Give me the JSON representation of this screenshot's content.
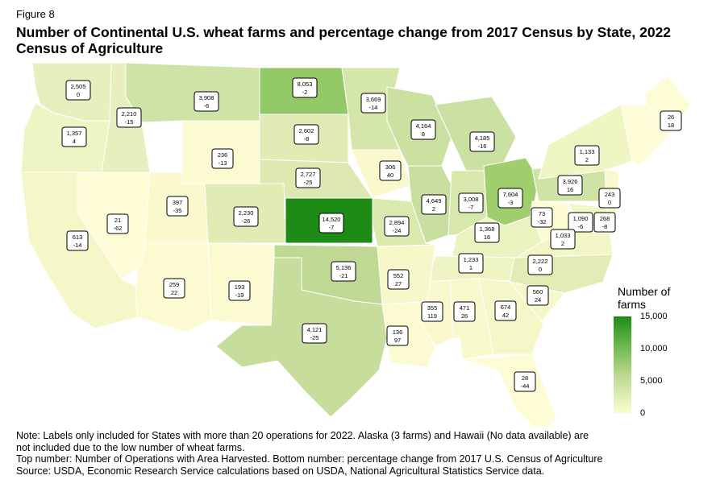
{
  "figure_label": "Figure 8",
  "title": "Number of Continental U.S. wheat farms and percentage change from 2017 Census by State, 2022 Census of Agriculture",
  "legend": {
    "title": "Number of farms",
    "ticks": [
      "15,000",
      "10,000",
      "5,000",
      "0"
    ],
    "colors": {
      "low": "#fcfbd2",
      "mid": "#b9d88e",
      "high": "#1e8b16"
    }
  },
  "notes": [
    "Note: Labels only included for States with more than 20 operations for 2022. Alaska (3 farms) and Hawaii (No data available) are",
    "not included due to the low number of wheat farms.",
    "Top number: Number of Operations with Area Harvested. Bottom number: percentage change from 2017 U.S. Census of Agriculture",
    "Source: USDA, Economic Research Service calculations based on USDA, National Agricultural Statistics Service data."
  ],
  "states": [
    {
      "id": "WA",
      "farms": "2,505",
      "change": "0"
    },
    {
      "id": "OR",
      "farms": "1,357",
      "change": "4"
    },
    {
      "id": "ID",
      "farms": "2,210",
      "change": "-15"
    },
    {
      "id": "MT",
      "farms": "3,908",
      "change": "-6"
    },
    {
      "id": "ND",
      "farms": "8,053",
      "change": "-2"
    },
    {
      "id": "MN",
      "farms": "3,669",
      "change": "-14"
    },
    {
      "id": "WI",
      "farms": "4,164",
      "change": "8"
    },
    {
      "id": "MI",
      "farms": "4,185",
      "change": "-16"
    },
    {
      "id": "SD",
      "farms": "2,602",
      "change": "-8"
    },
    {
      "id": "WY",
      "farms": "236",
      "change": "-13"
    },
    {
      "id": "NE",
      "farms": "2,727",
      "change": "-25"
    },
    {
      "id": "IA",
      "farms": "306",
      "change": "40"
    },
    {
      "id": "IL",
      "farms": "4,649",
      "change": "2"
    },
    {
      "id": "IN",
      "farms": "3,008",
      "change": "-7"
    },
    {
      "id": "OH",
      "farms": "7,604",
      "change": "-3"
    },
    {
      "id": "PA",
      "farms": "3,926",
      "change": "16"
    },
    {
      "id": "NY",
      "farms": "1,133",
      "change": "2"
    },
    {
      "id": "ME",
      "farms": "26",
      "change": "18"
    },
    {
      "id": "NJ",
      "farms": "243",
      "change": "0"
    },
    {
      "id": "MD",
      "farms": "1,090",
      "change": "-6"
    },
    {
      "id": "DE",
      "farms": "268",
      "change": "-8"
    },
    {
      "id": "WV",
      "farms": "73",
      "change": "-32"
    },
    {
      "id": "VA",
      "farms": "1,033",
      "change": "2"
    },
    {
      "id": "NV",
      "farms": "21",
      "change": "-62"
    },
    {
      "id": "UT",
      "farms": "397",
      "change": "-35"
    },
    {
      "id": "CO",
      "farms": "2,230",
      "change": "-26"
    },
    {
      "id": "KS",
      "farms": "14,520",
      "change": "-7"
    },
    {
      "id": "MO",
      "farms": "2,894",
      "change": "-24"
    },
    {
      "id": "KY",
      "farms": "1,368",
      "change": "16"
    },
    {
      "id": "CA",
      "farms": "613",
      "change": "-14"
    },
    {
      "id": "TN",
      "farms": "1,233",
      "change": "1"
    },
    {
      "id": "NC",
      "farms": "2,222",
      "change": "0"
    },
    {
      "id": "OK",
      "farms": "5,136",
      "change": "-21"
    },
    {
      "id": "AR",
      "farms": "552",
      "change": "27"
    },
    {
      "id": "AZ",
      "farms": "259",
      "change": "22"
    },
    {
      "id": "NM",
      "farms": "193",
      "change": "-19"
    },
    {
      "id": "SC",
      "farms": "560",
      "change": "24"
    },
    {
      "id": "MS",
      "farms": "355",
      "change": "119"
    },
    {
      "id": "AL",
      "farms": "471",
      "change": "26"
    },
    {
      "id": "GA",
      "farms": "674",
      "change": "42"
    },
    {
      "id": "TX",
      "farms": "4,121",
      "change": "-25"
    },
    {
      "id": "LA",
      "farms": "136",
      "change": "97"
    },
    {
      "id": "FL",
      "farms": "28",
      "change": "-44"
    }
  ]
}
